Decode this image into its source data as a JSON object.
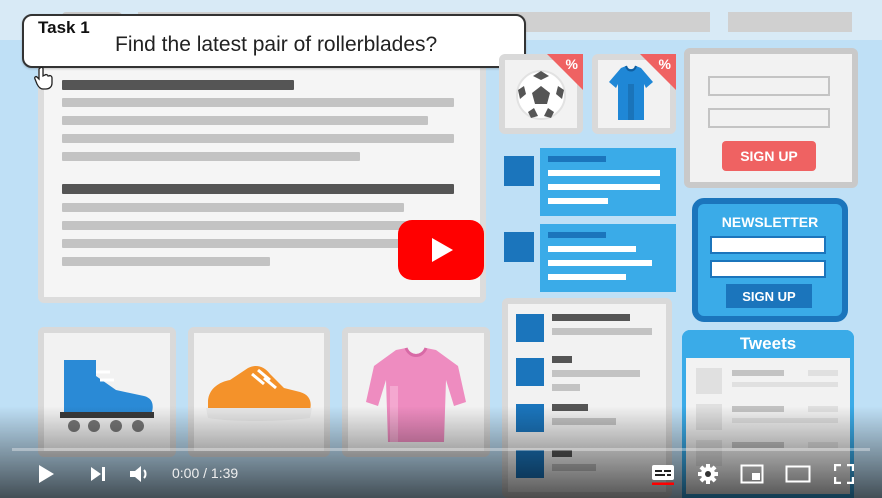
{
  "task": {
    "label": "Task 1",
    "prompt": "Find the latest pair of rollerblades?"
  },
  "promos": [
    {
      "badge": "%"
    },
    {
      "badge": "%"
    }
  ],
  "forms": {
    "signup_button": "SIGN UP",
    "newsletter_title": "NEWSLETTER",
    "newsletter_button": "SIGN UP"
  },
  "tweets": {
    "title": "Tweets"
  },
  "player": {
    "time_current": "0:00",
    "time_separator": " / ",
    "time_total": "1:39",
    "progress": 0.0,
    "colors": {
      "brand_red": "#ff0000",
      "accent_blue": "#1b75bc",
      "light_blue": "#3aabe8"
    }
  },
  "icons": {
    "play": "play-icon",
    "next": "next-icon",
    "volume": "volume-icon",
    "captions": "captions-icon",
    "settings": "gear-icon",
    "miniplayer": "miniplayer-icon",
    "theater": "theater-icon",
    "fullscreen": "fullscreen-icon"
  }
}
